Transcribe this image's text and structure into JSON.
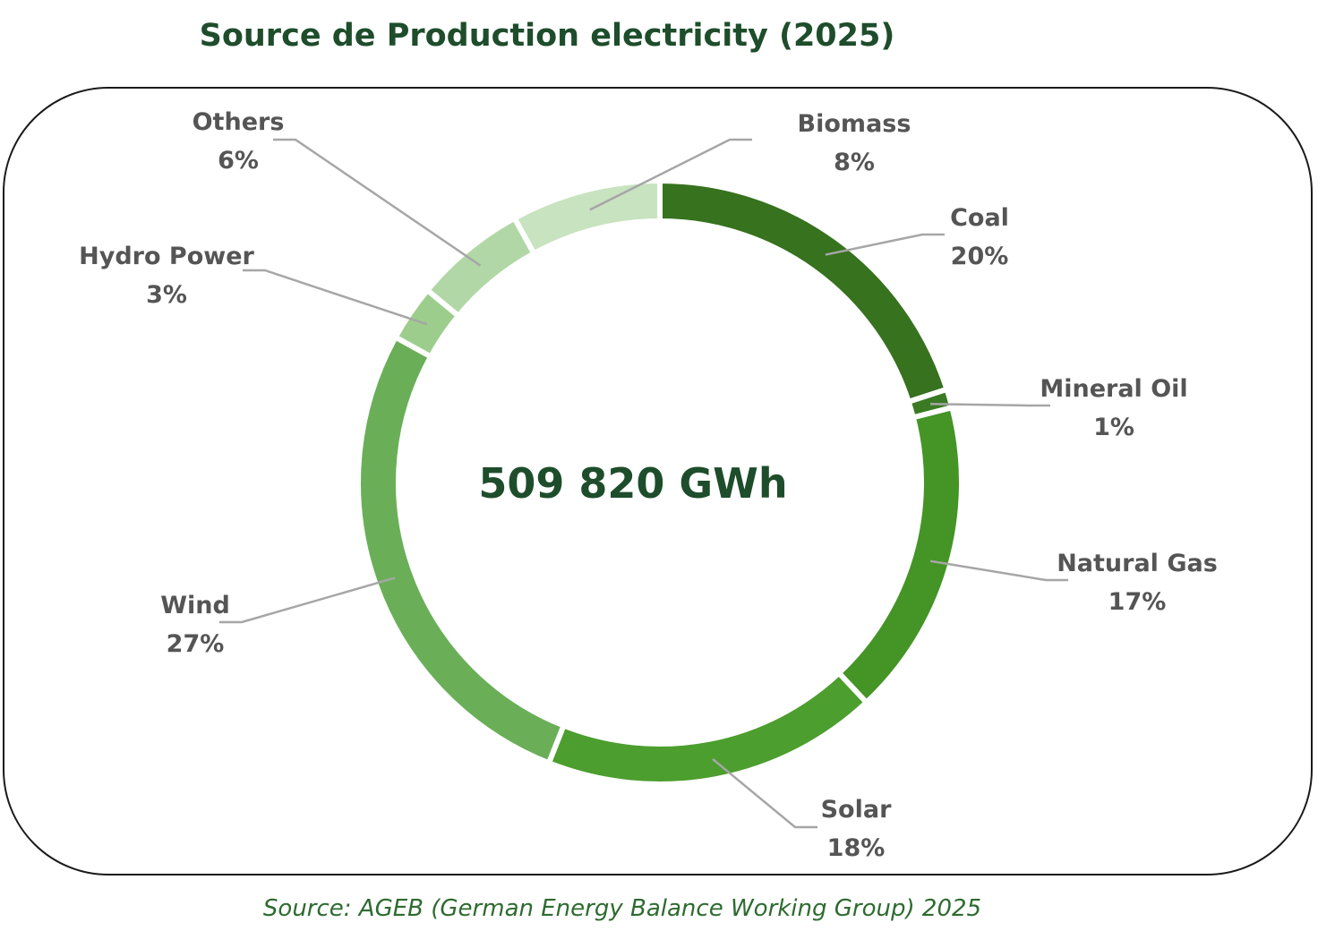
{
  "title": "Source de Production electricity (2025)",
  "center_label": "509 820 GWh",
  "source": "Source: AGEB (German Energy Balance Working Group) 2025",
  "chart_data": {
    "type": "pie",
    "title": "Source de Production electricity (2025)",
    "donut": true,
    "center_text": "509 820 GWh",
    "categories": [
      "Coal",
      "Mineral Oil",
      "Natural Gas",
      "Solar",
      "Wind",
      "Hydro Power",
      "Others",
      "Biomass"
    ],
    "values": [
      20,
      1,
      17,
      18,
      27,
      3,
      6,
      8
    ],
    "labels": [
      "20%",
      "1%",
      "17%",
      "18%",
      "27%",
      "3%",
      "6%",
      "8%"
    ],
    "colors": [
      "#37721f",
      "#3a7a22",
      "#449426",
      "#4c9e2e",
      "#6aaf58",
      "#9ccd8c",
      "#b2d7a6",
      "#c8e3bf"
    ]
  }
}
